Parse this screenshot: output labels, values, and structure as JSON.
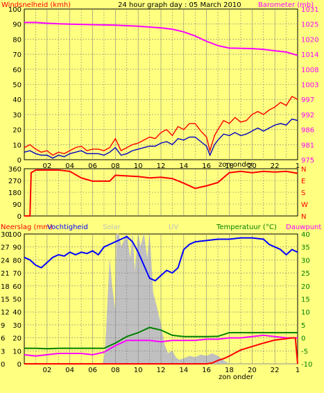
{
  "colors": {
    "background": "#FFFF80",
    "wind": "#FF0000",
    "wind_avg": "#0000C0",
    "barometer": "#FF00FF",
    "direction": "#FF0000",
    "rain": "#FF0000",
    "humidity": "#0000FF",
    "solar": "#C0C0C0",
    "temperature": "#008000",
    "dewpoint": "#FF00FF",
    "uv_text": "#C0C0C0",
    "grid": "#808080"
  },
  "chart_data": [
    {
      "type": "line",
      "title": "24 hour graph day : 05 March 2010",
      "left_axis_label": "Windsnelheid (kmh)",
      "right_axis_label": "Barometer (mb)",
      "x_ticks": [
        "02",
        "04",
        "06",
        "08",
        "10",
        "12",
        "14",
        "16",
        "18",
        "20",
        "22",
        "1"
      ],
      "sunset_label": "zon onder",
      "left_ticks": [
        "0",
        "10",
        "20",
        "30",
        "40",
        "50",
        "60",
        "70",
        "80",
        "90",
        "100"
      ],
      "right_ticks": [
        "975",
        "981",
        "986",
        "992",
        "997",
        "1003",
        "1008",
        "1014",
        "1020",
        "1025",
        "1031"
      ],
      "ylim_left": [
        0,
        100
      ],
      "ylim_right": [
        975,
        1031
      ],
      "series": [
        {
          "axis": "left",
          "role": "wind",
          "x": [
            0,
            0.5,
            1,
            1.5,
            2,
            2.5,
            3,
            3.5,
            4,
            4.5,
            5,
            5.5,
            6,
            6.5,
            7,
            7.5,
            8,
            8.5,
            9,
            9.5,
            10,
            10.5,
            11,
            11.5,
            12,
            12.5,
            13,
            13.5,
            14,
            14.5,
            15,
            15.5,
            16,
            16.3,
            16.7,
            17,
            17.5,
            18,
            18.5,
            19,
            19.5,
            20,
            20.5,
            21,
            21.5,
            22,
            22.5,
            23,
            23.5,
            24
          ],
          "values": [
            8,
            10,
            7,
            5,
            6,
            3,
            5,
            4,
            6,
            8,
            9,
            6,
            7,
            7,
            6,
            8,
            14,
            6,
            8,
            10,
            11,
            13,
            15,
            14,
            18,
            20,
            16,
            22,
            20,
            24,
            24,
            19,
            15,
            6,
            16,
            20,
            26,
            24,
            28,
            25,
            26,
            30,
            32,
            30,
            33,
            35,
            38,
            36,
            42,
            40
          ]
        },
        {
          "axis": "left",
          "role": "wind_avg",
          "x": [
            0,
            0.5,
            1,
            1.5,
            2,
            2.5,
            3,
            3.5,
            4,
            4.5,
            5,
            5.5,
            6,
            6.5,
            7,
            7.5,
            8,
            8.5,
            9,
            9.5,
            10,
            10.5,
            11,
            11.5,
            12,
            12.5,
            13,
            13.5,
            14,
            14.5,
            15,
            15.5,
            16,
            16.3,
            16.7,
            17,
            17.5,
            18,
            18.5,
            19,
            19.5,
            20,
            20.5,
            21,
            21.5,
            22,
            22.5,
            23,
            23.5,
            24
          ],
          "values": [
            5,
            6,
            4,
            3,
            3,
            1,
            3,
            2,
            4,
            5,
            6,
            4,
            4,
            4,
            3,
            5,
            8,
            3,
            4,
            6,
            7,
            8,
            9,
            9,
            11,
            12,
            10,
            14,
            13,
            15,
            15,
            12,
            9,
            3,
            10,
            13,
            17,
            16,
            18,
            16,
            17,
            19,
            21,
            19,
            21,
            23,
            24,
            23,
            27,
            26
          ]
        },
        {
          "axis": "right",
          "role": "barometer",
          "x": [
            0,
            1,
            2,
            3,
            4,
            5,
            6,
            7,
            8,
            9,
            10,
            11,
            12,
            13,
            14,
            15,
            16,
            17,
            18,
            19,
            20,
            21,
            22,
            23,
            24
          ],
          "values": [
            1026,
            1026,
            1025.7,
            1025.5,
            1025.4,
            1025.3,
            1025.2,
            1025.1,
            1025,
            1024.8,
            1024.6,
            1024.3,
            1024,
            1023.5,
            1022.5,
            1021,
            1019,
            1017.4,
            1016.5,
            1016.4,
            1016.3,
            1016,
            1015.5,
            1015,
            1013.8
          ]
        }
      ]
    },
    {
      "type": "line",
      "left_ticks": [
        "0",
        "90",
        "180",
        "270",
        "360"
      ],
      "right_ticks": [
        "N",
        "W",
        "S",
        "E",
        "N"
      ],
      "ylim": [
        0,
        360
      ],
      "series": [
        {
          "role": "direction",
          "x": [
            0,
            0.5,
            0.6,
            1,
            2,
            3,
            4,
            5,
            6,
            7,
            7.5,
            8,
            9,
            10,
            11,
            12,
            13,
            14,
            15,
            16,
            17,
            18,
            19,
            20,
            21,
            22,
            23,
            24
          ],
          "values": [
            0,
            0,
            330,
            350,
            350,
            350,
            340,
            290,
            265,
            265,
            265,
            310,
            305,
            300,
            290,
            295,
            285,
            250,
            210,
            230,
            255,
            330,
            340,
            330,
            340,
            335,
            340,
            325
          ]
        }
      ]
    },
    {
      "type": "line",
      "left_axis_label": "Neerslag (mm)",
      "humidity_label": "Vochtigheid",
      "solar_label": "Solar",
      "uv_label": "UV",
      "temperature_label": "Temperatuur (°C)",
      "dewpoint_label": "Dauwpunt",
      "x_ticks": [
        "02",
        "04",
        "06",
        "08",
        "10",
        "12",
        "14",
        "16",
        "18",
        "20",
        "22",
        "1"
      ],
      "sunset_label": "zon onder",
      "rain_ticks": [
        "0",
        "3",
        "6",
        "9",
        "12",
        "15",
        "18",
        "21",
        "24",
        "27",
        "30"
      ],
      "humidity_ticks": [
        "0",
        "10",
        "20",
        "30",
        "40",
        "50",
        "60",
        "70",
        "80",
        "90",
        "100"
      ],
      "temp_ticks": [
        "-10",
        "-5",
        "0",
        "5",
        "10",
        "15",
        "20",
        "25",
        "30",
        "35",
        "40"
      ],
      "ylim_humidity": [
        0,
        100
      ],
      "ylim_temp": [
        -10,
        40
      ],
      "series": [
        {
          "role": "solar",
          "axis": "humidity",
          "x": [
            0,
            6.9,
            7.1,
            7.5,
            7.7,
            8,
            8.1,
            8.3,
            8.5,
            9,
            9.3,
            9.5,
            9.7,
            10,
            10.2,
            10.5,
            10.8,
            11,
            11.3,
            11.6,
            12,
            12.3,
            12.6,
            13,
            13.3,
            13.6,
            14,
            14.5,
            15,
            15.5,
            16,
            16.5,
            17,
            17.3,
            17.6,
            18,
            24
          ],
          "values": [
            0,
            0,
            10,
            80,
            60,
            40,
            100,
            100,
            90,
            100,
            80,
            100,
            70,
            100,
            90,
            100,
            80,
            100,
            55,
            45,
            30,
            15,
            8,
            10,
            5,
            3,
            4,
            6,
            5,
            7,
            6,
            8,
            6,
            4,
            2,
            0,
            0
          ]
        },
        {
          "role": "humidity",
          "axis": "humidity",
          "x": [
            0,
            0.5,
            1,
            1.5,
            2,
            2.5,
            3,
            3.5,
            4,
            4.5,
            5,
            5.5,
            6,
            6.5,
            7,
            7.5,
            8,
            8.5,
            9,
            9.5,
            10,
            10.5,
            11,
            11.5,
            12,
            12.5,
            13,
            13.5,
            14,
            14.5,
            15,
            16,
            17,
            18,
            19,
            20,
            21,
            21.5,
            22,
            22.5,
            23,
            23.5,
            24
          ],
          "values": [
            82,
            80,
            76,
            74,
            78,
            82,
            84,
            83,
            86,
            84,
            86,
            85,
            87,
            84,
            90,
            92,
            94,
            96,
            98,
            94,
            86,
            76,
            66,
            64,
            68,
            72,
            70,
            74,
            88,
            92,
            94,
            95,
            96,
            96,
            97,
            97,
            96,
            92,
            90,
            88,
            84,
            88,
            86
          ]
        },
        {
          "role": "temperature",
          "axis": "temp",
          "x": [
            0,
            1,
            2,
            3,
            4,
            5,
            6,
            7,
            8,
            9,
            10,
            11,
            12,
            13,
            14,
            15,
            16,
            17,
            18,
            19,
            20,
            21,
            22,
            23,
            24
          ],
          "values": [
            -4,
            -4,
            -4.2,
            -4,
            -4,
            -4,
            -4,
            -4,
            -2,
            0.5,
            2,
            4,
            3,
            1,
            0.5,
            0.5,
            0.5,
            0.6,
            2,
            2,
            2,
            2,
            2,
            2,
            2
          ]
        },
        {
          "role": "dewpoint",
          "axis": "temp",
          "x": [
            0,
            1,
            2,
            3,
            4,
            5,
            6,
            7,
            8,
            9,
            10,
            11,
            12,
            13,
            14,
            15,
            16,
            17,
            18,
            19,
            20,
            21,
            22,
            23,
            24
          ],
          "values": [
            -6.5,
            -7,
            -6.5,
            -6,
            -6,
            -6,
            -6.5,
            -5.5,
            -3,
            -1,
            -1,
            -1,
            -1.5,
            -1,
            -1,
            -1,
            -0.5,
            -0.5,
            0,
            0,
            0.5,
            1,
            0.5,
            0,
            0
          ]
        },
        {
          "role": "rain",
          "axis": "rain",
          "x": [
            0,
            16,
            16.5,
            17,
            17.5,
            18,
            18.5,
            19,
            19.5,
            20,
            21,
            22,
            23,
            23.5,
            23.8,
            24
          ],
          "values": [
            0,
            0,
            0.2,
            0.8,
            1.2,
            1.8,
            2.5,
            3.2,
            3.6,
            4,
            4.8,
            5.5,
            5.8,
            6,
            6,
            0
          ]
        }
      ]
    }
  ]
}
